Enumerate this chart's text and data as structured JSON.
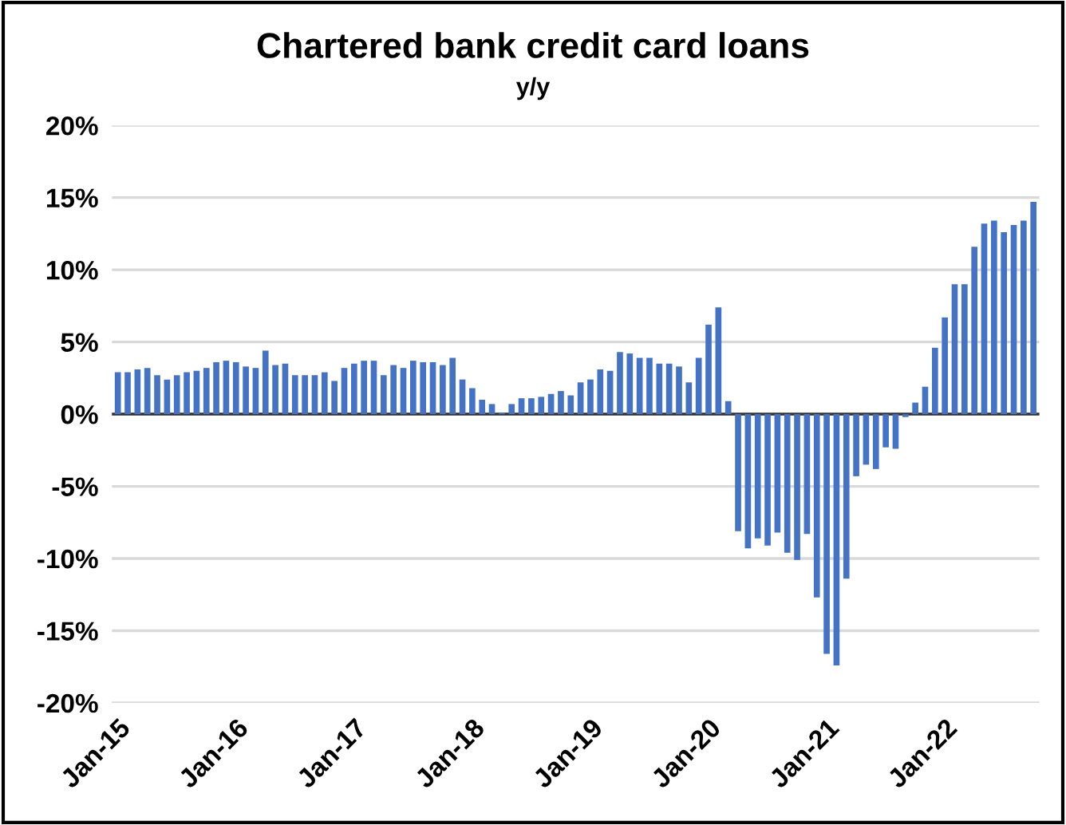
{
  "chart_data": {
    "type": "bar",
    "title": "Chartered bank credit card loans",
    "subtitle": "y/y",
    "categories": [
      "Jan-15",
      null,
      null,
      null,
      null,
      null,
      null,
      null,
      null,
      null,
      null,
      null,
      "Jan-16",
      null,
      null,
      null,
      null,
      null,
      null,
      null,
      null,
      null,
      null,
      null,
      "Jan-17",
      null,
      null,
      null,
      null,
      null,
      null,
      null,
      null,
      null,
      null,
      null,
      "Jan-18",
      null,
      null,
      null,
      null,
      null,
      null,
      null,
      null,
      null,
      null,
      null,
      "Jan-19",
      null,
      null,
      null,
      null,
      null,
      null,
      null,
      null,
      null,
      null,
      null,
      "Jan-20",
      null,
      null,
      null,
      null,
      null,
      null,
      null,
      null,
      null,
      null,
      null,
      "Jan-21",
      null,
      null,
      null,
      null,
      null,
      null,
      null,
      null,
      null,
      null,
      null,
      "Jan-22",
      null,
      null,
      null,
      null,
      null,
      null,
      null,
      null,
      null
    ],
    "values": [
      2.9,
      2.9,
      3.1,
      3.2,
      2.7,
      2.4,
      2.7,
      2.9,
      3.0,
      3.2,
      3.6,
      3.7,
      3.6,
      3.3,
      3.2,
      4.4,
      3.4,
      3.5,
      2.7,
      2.7,
      2.7,
      2.9,
      2.3,
      3.2,
      3.5,
      3.7,
      3.7,
      2.7,
      3.4,
      3.2,
      3.7,
      3.6,
      3.6,
      3.4,
      3.9,
      2.4,
      1.8,
      1.0,
      0.7,
      0.1,
      0.7,
      1.1,
      1.1,
      1.2,
      1.4,
      1.6,
      1.3,
      2.2,
      2.4,
      3.1,
      3.0,
      4.3,
      4.2,
      3.9,
      3.9,
      3.5,
      3.5,
      3.3,
      2.2,
      3.9,
      6.2,
      7.4,
      0.9,
      -8.1,
      -9.3,
      -8.6,
      -9.1,
      -8.2,
      -9.6,
      -10.1,
      -8.3,
      -12.7,
      -16.6,
      -17.4,
      -11.4,
      -4.3,
      -3.5,
      -3.8,
      -2.3,
      -2.4,
      -0.2,
      0.8,
      1.9,
      4.6,
      6.7,
      9.0,
      9.0,
      11.6,
      13.2,
      13.4,
      12.6,
      13.1,
      13.4,
      14.7
    ],
    "color": "#4472c4",
    "ylim": [
      -20,
      20
    ],
    "yticks": [
      {
        "value": -20,
        "label": "-20%"
      },
      {
        "value": -15,
        "label": "-15%"
      },
      {
        "value": -10,
        "label": "-10%"
      },
      {
        "value": -5,
        "label": "-5%"
      },
      {
        "value": 0,
        "label": "0%"
      },
      {
        "value": 5,
        "label": "5%"
      },
      {
        "value": 10,
        "label": "10%"
      },
      {
        "value": 15,
        "label": "15%"
      },
      {
        "value": 20,
        "label": "20%"
      }
    ],
    "grid": "y"
  }
}
